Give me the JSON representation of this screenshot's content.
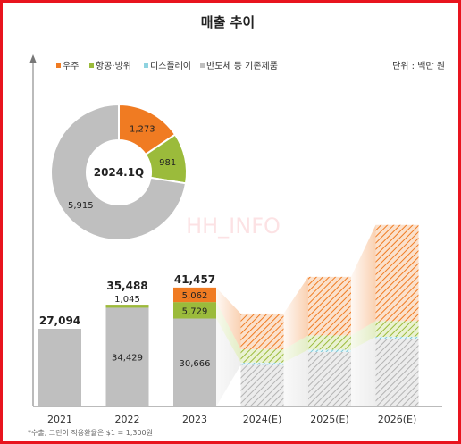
{
  "chart_data": {
    "type": "bar",
    "title": "매출 추이",
    "unit": "단위 : 백만 원",
    "watermark": "HH_INFO",
    "footnote": "*수출, 그린이 적용환율은 $1 = 1,300원",
    "categories": [
      "2021",
      "2022",
      "2023",
      "2024(E)",
      "2025(E)",
      "2026(E)"
    ],
    "series": [
      {
        "name": "반도체 등 기존제품",
        "color": "#bfbfbf",
        "values": [
          27094,
          34429,
          30666,
          null,
          null,
          null
        ],
        "labels": [
          "",
          "34,429",
          "30,666",
          "",
          "",
          ""
        ]
      },
      {
        "name": "디스플레이",
        "color": "#8fd3e0",
        "values": [
          0,
          0,
          0,
          null,
          null,
          null
        ],
        "labels": [
          "",
          "",
          "",
          "",
          "",
          ""
        ]
      },
      {
        "name": "항공·방위",
        "color": "#9bbb3b",
        "values": [
          0,
          1045,
          5729,
          null,
          null,
          null
        ],
        "labels": [
          "",
          "1,045",
          "5,729",
          "",
          "",
          ""
        ]
      },
      {
        "name": "우주",
        "color": "#f07b22",
        "values": [
          0,
          14,
          5062,
          null,
          null,
          null
        ],
        "labels": [
          "",
          "",
          "5,062",
          "",
          "",
          ""
        ]
      }
    ],
    "totals": [
      "27,094",
      "35,488",
      "41,457",
      "",
      "",
      ""
    ],
    "projected_visual_levels": [
      {
        "category": "2024(E)",
        "semiconductor": 14500,
        "display": 800,
        "aerospace": 4600,
        "space": 12500
      },
      {
        "category": "2025(E)",
        "semiconductor": 19000,
        "display": 800,
        "aerospace": 5000,
        "space": 20400
      },
      {
        "category": "2026(E)",
        "semiconductor": 23500,
        "display": 800,
        "aerospace": 5500,
        "space": 33500
      }
    ],
    "donut": {
      "center_label": "2024.1Q",
      "slices": [
        {
          "name": "우주",
          "value": 1273,
          "label": "1,273",
          "color": "#f07b22"
        },
        {
          "name": "항공·방위",
          "value": 981,
          "label": "981",
          "color": "#9bbb3b"
        },
        {
          "name": "반도체 등 기존제품",
          "value": 5915,
          "label": "5,915",
          "color": "#bfbfbf"
        }
      ]
    },
    "legend": [
      {
        "name": "우주",
        "color": "#f07b22"
      },
      {
        "name": "항공·방위",
        "color": "#9bbb3b"
      },
      {
        "name": "디스플레이",
        "color": "#8fd3e0"
      },
      {
        "name": "반도체 등 기존제품",
        "color": "#bfbfbf"
      }
    ],
    "legend_position": "top-left",
    "grid": false
  }
}
